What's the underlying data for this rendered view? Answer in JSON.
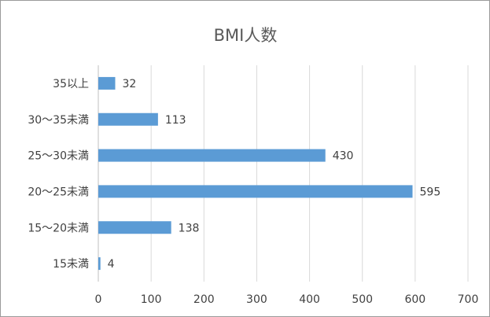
{
  "chart_data": {
    "type": "bar",
    "orientation": "horizontal",
    "title": "BMI人数",
    "categories": [
      "35以上",
      "30〜35未満",
      "25〜30未満",
      "20〜25未満",
      "15〜20未満",
      "15未満"
    ],
    "values": [
      32,
      113,
      430,
      595,
      138,
      4
    ],
    "data_labels": [
      "32",
      "113",
      "430",
      "595",
      "138",
      "4"
    ],
    "xlim": [
      0,
      700
    ],
    "x_ticks": [
      0,
      100,
      200,
      300,
      400,
      500,
      600,
      700
    ],
    "xlabel": "",
    "ylabel": "",
    "grid": "vertical",
    "legend": "none",
    "bar_color": "#5B9BD5",
    "grid_color": "#d9d9d9"
  }
}
